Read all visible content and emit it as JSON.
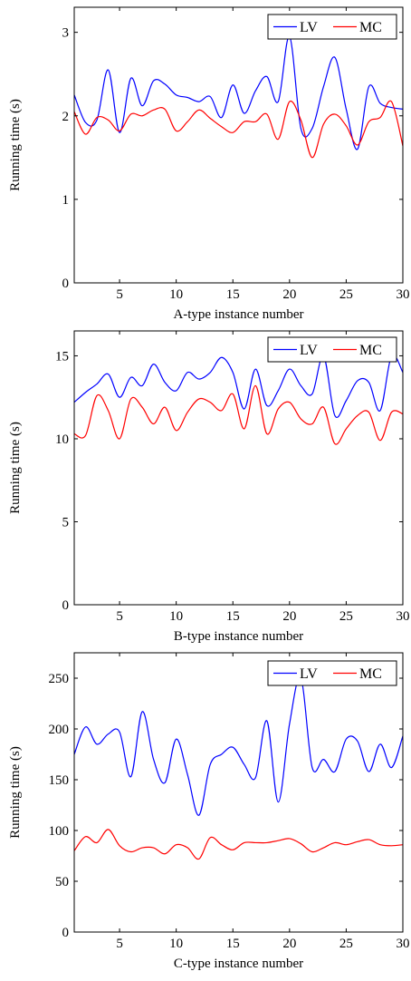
{
  "chart_data": [
    {
      "type": "line",
      "xlabel": "A-type instance number",
      "ylabel": "Running time (s)",
      "xlim": [
        1,
        30
      ],
      "ylim": [
        0,
        3.3
      ],
      "xticks": [
        5,
        10,
        15,
        20,
        25,
        30
      ],
      "yticks": [
        0,
        1,
        2,
        3
      ],
      "legend_position": "top-right",
      "x": [
        1,
        2,
        3,
        4,
        5,
        6,
        7,
        8,
        9,
        10,
        11,
        12,
        13,
        14,
        15,
        16,
        17,
        18,
        19,
        20,
        21,
        22,
        23,
        24,
        25,
        26,
        27,
        28,
        29,
        30
      ],
      "series": [
        {
          "name": "LV",
          "color": "#0000ff",
          "values": [
            2.25,
            1.92,
            1.95,
            2.55,
            1.8,
            2.45,
            2.12,
            2.42,
            2.38,
            2.25,
            2.22,
            2.17,
            2.23,
            1.98,
            2.37,
            2.03,
            2.3,
            2.47,
            2.17,
            2.95,
            1.85,
            1.85,
            2.35,
            2.7,
            2.08,
            1.6,
            2.35,
            2.15,
            2.1,
            2.08
          ]
        },
        {
          "name": "MC",
          "color": "#ff0000",
          "values": [
            2.05,
            1.78,
            1.98,
            1.95,
            1.82,
            2.02,
            2.0,
            2.07,
            2.08,
            1.82,
            1.93,
            2.07,
            1.97,
            1.87,
            1.8,
            1.93,
            1.93,
            2.02,
            1.72,
            2.17,
            1.95,
            1.5,
            1.9,
            2.02,
            1.88,
            1.65,
            1.93,
            1.98,
            2.17,
            1.64
          ]
        }
      ]
    },
    {
      "type": "line",
      "xlabel": "B-type instance number",
      "ylabel": "Running time (s)",
      "xlim": [
        1,
        30
      ],
      "ylim": [
        0,
        16.5
      ],
      "xticks": [
        5,
        10,
        15,
        20,
        25,
        30
      ],
      "yticks": [
        0,
        5,
        10,
        15
      ],
      "legend_position": "top-right",
      "x": [
        1,
        2,
        3,
        4,
        5,
        6,
        7,
        8,
        9,
        10,
        11,
        12,
        13,
        14,
        15,
        16,
        17,
        18,
        19,
        20,
        21,
        22,
        23,
        24,
        25,
        26,
        27,
        28,
        29,
        30
      ],
      "series": [
        {
          "name": "LV",
          "color": "#0000ff",
          "values": [
            12.2,
            12.8,
            13.3,
            13.9,
            12.5,
            13.7,
            13.2,
            14.5,
            13.4,
            12.9,
            14.0,
            13.6,
            14.0,
            14.9,
            14.0,
            11.8,
            14.2,
            12.0,
            12.9,
            14.2,
            13.2,
            12.7,
            15.0,
            11.4,
            12.3,
            13.5,
            13.4,
            11.7,
            15.0,
            14.0
          ]
        },
        {
          "name": "MC",
          "color": "#ff0000",
          "values": [
            10.3,
            10.2,
            12.6,
            11.7,
            10.0,
            12.4,
            11.9,
            10.9,
            11.9,
            10.5,
            11.6,
            12.4,
            12.2,
            11.7,
            12.7,
            10.6,
            13.2,
            10.3,
            11.8,
            12.2,
            11.2,
            10.9,
            11.9,
            9.7,
            10.6,
            11.4,
            11.6,
            9.9,
            11.6,
            11.5
          ]
        }
      ]
    },
    {
      "type": "line",
      "xlabel": "C-type instance number",
      "ylabel": "Running time (s)",
      "xlim": [
        1,
        30
      ],
      "ylim": [
        0,
        275
      ],
      "xticks": [
        5,
        10,
        15,
        20,
        25,
        30
      ],
      "yticks": [
        0,
        50,
        100,
        150,
        200,
        250
      ],
      "legend_position": "top-right",
      "x": [
        1,
        2,
        3,
        4,
        5,
        6,
        7,
        8,
        9,
        10,
        11,
        12,
        13,
        14,
        15,
        16,
        17,
        18,
        19,
        20,
        21,
        22,
        23,
        24,
        25,
        26,
        27,
        28,
        29,
        30
      ],
      "series": [
        {
          "name": "LV",
          "color": "#0000ff",
          "values": [
            175,
            202,
            185,
            195,
            197,
            153,
            217,
            170,
            147,
            190,
            155,
            115,
            165,
            175,
            182,
            165,
            152,
            208,
            128,
            205,
            250,
            162,
            170,
            158,
            190,
            188,
            158,
            185,
            162,
            193
          ]
        },
        {
          "name": "MC",
          "color": "#ff0000",
          "values": [
            80,
            94,
            88,
            101,
            85,
            79,
            83,
            83,
            77,
            86,
            83,
            72,
            93,
            86,
            81,
            88,
            88,
            88,
            90,
            92,
            87,
            79,
            83,
            88,
            86,
            89,
            91,
            86,
            85,
            86
          ]
        }
      ]
    }
  ]
}
